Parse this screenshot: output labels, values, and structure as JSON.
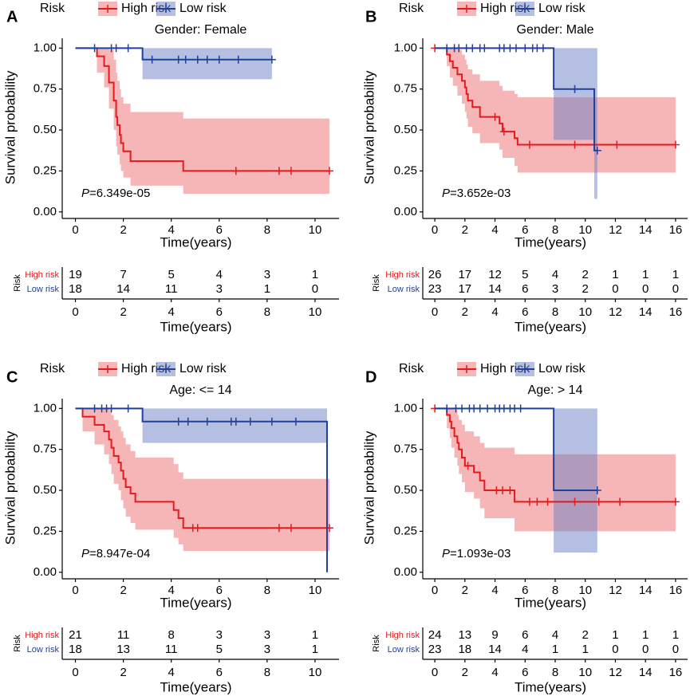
{
  "chart_data": [
    {
      "type": "km",
      "panel": "A",
      "title": "Gender: Female",
      "legend_title": "Risk",
      "xlabel": "Time(years)",
      "ylabel": "Survival probability",
      "pvalue_symbol": "P",
      "pvalue": "=6.349e-05",
      "xlim": [
        -0.55,
        11
      ],
      "xticks": [
        0,
        2,
        4,
        6,
        8,
        10
      ],
      "ylim": [
        -0.04,
        1.06
      ],
      "yticks": [
        {
          "value": 0,
          "label": "0.00"
        },
        {
          "value": 0.25,
          "label": "0.25"
        },
        {
          "value": 0.5,
          "label": "0.50"
        },
        {
          "value": 0.75,
          "label": "0.75"
        },
        {
          "value": 1,
          "label": "1.00"
        }
      ],
      "series": [
        {
          "name": "High risk",
          "color": "#e41a1c",
          "band_color": "#ee6e70",
          "x": [
            0,
            0.9,
            1.2,
            1.4,
            1.6,
            1.7,
            1.75,
            1.85,
            1.9,
            2.0,
            2.3,
            4.5,
            10.6
          ],
          "values": [
            1,
            0.95,
            0.89,
            0.79,
            0.68,
            0.58,
            0.53,
            0.47,
            0.42,
            0.37,
            0.31,
            0.25,
            0.25
          ],
          "lower": [
            1,
            0.85,
            0.76,
            0.63,
            0.5,
            0.4,
            0.35,
            0.29,
            0.25,
            0.21,
            0.16,
            0.11,
            0.11
          ],
          "upper": [
            1,
            1,
            1,
            0.99,
            0.93,
            0.85,
            0.8,
            0.75,
            0.7,
            0.66,
            0.61,
            0.57,
            0.57
          ],
          "censor_x": [
            6.7,
            8.5,
            9.0,
            10.6
          ],
          "censor_values": [
            0.25,
            0.25,
            0.25,
            0.25
          ],
          "at_risk": [
            19,
            7,
            5,
            4,
            3,
            1
          ]
        },
        {
          "name": "Low risk",
          "color": "#20409a",
          "band_color": "#6a80c4",
          "x": [
            0,
            2.8,
            8.2
          ],
          "values": [
            1,
            0.93,
            0.93
          ],
          "lower": [
            1,
            0.81,
            0.81
          ],
          "upper": [
            1,
            1,
            1
          ],
          "censor_x": [
            0.8,
            1.5,
            1.7,
            2.2,
            3.2,
            4.3,
            4.6,
            5.1,
            5.5,
            6.0,
            6.8,
            8.2
          ],
          "censor_values": [
            1,
            1,
            1,
            1,
            0.93,
            0.93,
            0.93,
            0.93,
            0.93,
            0.93,
            0.93,
            0.93
          ],
          "at_risk": [
            18,
            14,
            11,
            3,
            1,
            0
          ]
        }
      ]
    },
    {
      "type": "km",
      "panel": "B",
      "title": "Gender: Male",
      "legend_title": "Risk",
      "xlabel": "Time(years)",
      "ylabel": "Survival probability",
      "pvalue_symbol": "P",
      "pvalue": "=3.652e-03",
      "xlim": [
        -0.8,
        16.8
      ],
      "xticks": [
        0,
        2,
        4,
        6,
        8,
        10,
        12,
        14,
        16
      ],
      "ylim": [
        -0.04,
        1.06
      ],
      "yticks": [
        {
          "value": 0,
          "label": "0.00"
        },
        {
          "value": 0.25,
          "label": "0.25"
        },
        {
          "value": 0.5,
          "label": "0.50"
        },
        {
          "value": 0.75,
          "label": "0.75"
        },
        {
          "value": 1,
          "label": "1.00"
        }
      ],
      "series": [
        {
          "name": "High risk",
          "color": "#e41a1c",
          "band_color": "#ee6e70",
          "x": [
            0,
            0.8,
            1.0,
            1.2,
            1.5,
            1.8,
            2.0,
            2.1,
            2.2,
            2.5,
            3.0,
            4.3,
            4.5,
            5.3,
            5.5,
            16
          ],
          "values": [
            1,
            0.96,
            0.92,
            0.88,
            0.84,
            0.8,
            0.76,
            0.72,
            0.68,
            0.64,
            0.58,
            0.54,
            0.49,
            0.45,
            0.41,
            0.41
          ],
          "lower": [
            1,
            0.89,
            0.82,
            0.77,
            0.71,
            0.66,
            0.61,
            0.57,
            0.52,
            0.48,
            0.42,
            0.38,
            0.33,
            0.28,
            0.24,
            0.24
          ],
          "upper": [
            1,
            1,
            1,
            1,
            0.99,
            0.96,
            0.93,
            0.9,
            0.87,
            0.84,
            0.8,
            0.77,
            0.74,
            0.72,
            0.7,
            0.7
          ],
          "censor_x": [
            0,
            4.0,
            4.6,
            6.3,
            9.3,
            12.1,
            16
          ],
          "censor_values": [
            1,
            0.58,
            0.49,
            0.41,
            0.41,
            0.41,
            0.41
          ],
          "at_risk": [
            26,
            17,
            12,
            5,
            4,
            2,
            1,
            1,
            1
          ]
        },
        {
          "name": "Low risk",
          "color": "#20409a",
          "band_color": "#6a80c4",
          "x": [
            0,
            7.9,
            10.6,
            10.8
          ],
          "values": [
            1,
            0.75,
            0.375,
            0.375
          ],
          "lower": [
            1,
            0.44,
            0.08,
            0.08
          ],
          "upper": [
            1,
            1,
            1,
            1
          ],
          "censor_x": [
            0.8,
            1.3,
            1.6,
            2.1,
            2.5,
            3.0,
            3.3,
            4.3,
            4.6,
            5.0,
            5.4,
            6.0,
            6.5,
            6.8,
            7.2,
            9.3,
            10.8
          ],
          "censor_values": [
            1,
            1,
            1,
            1,
            1,
            1,
            1,
            1,
            1,
            1,
            1,
            1,
            1,
            1,
            1,
            0.75,
            0.375
          ],
          "at_risk": [
            23,
            17,
            14,
            6,
            3,
            2,
            0,
            0,
            0
          ]
        }
      ]
    },
    {
      "type": "km",
      "panel": "C",
      "title": "Age: <= 14",
      "legend_title": "Risk",
      "xlabel": "Time(years)",
      "ylabel": "Survival probability",
      "pvalue_symbol": "P",
      "pvalue": "=8.947e-04",
      "xlim": [
        -0.55,
        11
      ],
      "xticks": [
        0,
        2,
        4,
        6,
        8,
        10
      ],
      "ylim": [
        -0.04,
        1.06
      ],
      "yticks": [
        {
          "value": 0,
          "label": "0.00"
        },
        {
          "value": 0.25,
          "label": "0.25"
        },
        {
          "value": 0.5,
          "label": "0.50"
        },
        {
          "value": 0.75,
          "label": "0.75"
        },
        {
          "value": 1,
          "label": "1.00"
        }
      ],
      "series": [
        {
          "name": "High risk",
          "color": "#e41a1c",
          "band_color": "#ee6e70",
          "x": [
            0,
            0.3,
            0.8,
            1.2,
            1.4,
            1.5,
            1.6,
            1.8,
            1.9,
            2.0,
            2.1,
            2.3,
            2.5,
            4.1,
            4.3,
            4.5,
            10.6
          ],
          "values": [
            1,
            0.95,
            0.9,
            0.86,
            0.81,
            0.76,
            0.71,
            0.67,
            0.62,
            0.57,
            0.52,
            0.48,
            0.43,
            0.38,
            0.33,
            0.27,
            0.27
          ],
          "lower": [
            1,
            0.86,
            0.78,
            0.72,
            0.66,
            0.6,
            0.54,
            0.5,
            0.44,
            0.39,
            0.34,
            0.3,
            0.26,
            0.21,
            0.17,
            0.13,
            0.13
          ],
          "upper": [
            1,
            1,
            1,
            1,
            0.99,
            0.96,
            0.93,
            0.89,
            0.86,
            0.82,
            0.78,
            0.74,
            0.7,
            0.66,
            0.61,
            0.57,
            0.57
          ],
          "censor_x": [
            4.9,
            5.1,
            8.5,
            9.0,
            10.6
          ],
          "censor_values": [
            0.27,
            0.27,
            0.27,
            0.27,
            0.27
          ],
          "at_risk": [
            21,
            11,
            8,
            3,
            3,
            1
          ]
        },
        {
          "name": "Low risk",
          "color": "#20409a",
          "band_color": "#6a80c4",
          "x": [
            0,
            2.8,
            10.5
          ],
          "values": [
            1,
            0.92,
            0
          ],
          "lower": [
            1,
            0.79,
            0
          ],
          "upper": [
            1,
            1,
            1
          ],
          "censor_x": [
            0.8,
            1.1,
            1.3,
            1.5,
            2.2,
            4.3,
            4.7,
            5.5,
            6.5,
            6.7,
            7.3,
            8.2,
            9.2
          ],
          "censor_values": [
            1,
            1,
            1,
            1,
            1,
            0.92,
            0.92,
            0.92,
            0.92,
            0.92,
            0.92,
            0.92,
            0.92
          ],
          "at_risk": [
            18,
            13,
            11,
            5,
            3,
            1
          ]
        }
      ]
    },
    {
      "type": "km",
      "panel": "D",
      "title": "Age: > 14",
      "legend_title": "Risk",
      "xlabel": "Time(years)",
      "ylabel": "Survival probability",
      "pvalue_symbol": "P",
      "pvalue": "=1.093e-03",
      "xlim": [
        -0.8,
        16.8
      ],
      "xticks": [
        0,
        2,
        4,
        6,
        8,
        10,
        12,
        14,
        16
      ],
      "ylim": [
        -0.04,
        1.06
      ],
      "yticks": [
        {
          "value": 0,
          "label": "0.00"
        },
        {
          "value": 0.25,
          "label": "0.25"
        },
        {
          "value": 0.5,
          "label": "0.50"
        },
        {
          "value": 0.75,
          "label": "0.75"
        },
        {
          "value": 1,
          "label": "1.00"
        }
      ],
      "series": [
        {
          "name": "High risk",
          "color": "#e41a1c",
          "band_color": "#ee6e70",
          "x": [
            0,
            0.8,
            1.0,
            1.1,
            1.3,
            1.5,
            1.6,
            1.8,
            2.0,
            2.6,
            3.0,
            3.3,
            5.3,
            16
          ],
          "values": [
            1,
            0.96,
            0.92,
            0.88,
            0.83,
            0.79,
            0.75,
            0.7,
            0.65,
            0.61,
            0.56,
            0.5,
            0.43,
            0.43
          ],
          "lower": [
            1,
            0.88,
            0.82,
            0.76,
            0.7,
            0.65,
            0.6,
            0.55,
            0.49,
            0.45,
            0.39,
            0.33,
            0.25,
            0.25
          ],
          "upper": [
            1,
            1,
            1,
            1,
            0.99,
            0.96,
            0.93,
            0.9,
            0.86,
            0.83,
            0.79,
            0.76,
            0.72,
            0.72
          ],
          "censor_x": [
            0,
            2.2,
            4.1,
            4.5,
            5.0,
            6.3,
            6.8,
            7.5,
            9.3,
            10.9,
            12.3,
            16
          ],
          "censor_values": [
            1,
            0.65,
            0.5,
            0.5,
            0.5,
            0.43,
            0.43,
            0.43,
            0.43,
            0.43,
            0.43,
            0.43
          ],
          "at_risk": [
            24,
            13,
            9,
            6,
            4,
            2,
            1,
            1,
            1
          ]
        },
        {
          "name": "Low risk",
          "color": "#20409a",
          "band_color": "#6a80c4",
          "x": [
            0,
            7.9,
            10.8
          ],
          "values": [
            1,
            0.5,
            0.5
          ],
          "lower": [
            1,
            0.12,
            0.12
          ],
          "upper": [
            1,
            1,
            1
          ],
          "censor_x": [
            0.8,
            1.4,
            1.8,
            2.3,
            2.6,
            3.0,
            3.5,
            4.0,
            4.3,
            4.6,
            5.0,
            5.3,
            5.7,
            10.8
          ],
          "censor_values": [
            1,
            1,
            1,
            1,
            1,
            1,
            1,
            1,
            1,
            1,
            1,
            1,
            1,
            0.5
          ],
          "at_risk": [
            23,
            18,
            14,
            4,
            1,
            1,
            0,
            0,
            0
          ]
        }
      ]
    }
  ]
}
